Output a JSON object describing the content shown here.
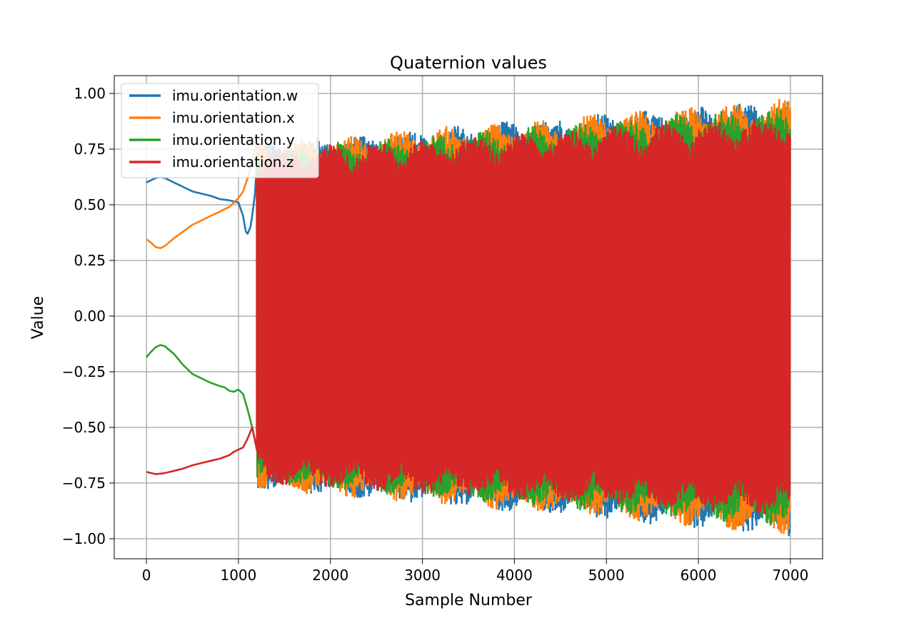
{
  "chart_data": {
    "type": "line",
    "title": "Quaternion values",
    "xlabel": "Sample Number",
    "ylabel": "Value",
    "xlim": [
      -350,
      7350
    ],
    "ylim": [
      -1.09,
      1.08
    ],
    "grid": true,
    "legend_position": "top-left",
    "xticks": [
      0,
      1000,
      2000,
      3000,
      4000,
      5000,
      6000,
      7000
    ],
    "xtick_labels": [
      "0",
      "1000",
      "2000",
      "3000",
      "4000",
      "5000",
      "6000",
      "7000"
    ],
    "yticks": [
      1.0,
      0.75,
      0.5,
      0.25,
      0.0,
      -0.25,
      -0.5,
      -0.75,
      -1.0
    ],
    "ytick_labels": [
      "1.00",
      "0.75",
      "0.50",
      "0.25",
      "0.00",
      "−0.25",
      "−0.50",
      "−0.75",
      "−1.00"
    ],
    "series": [
      {
        "name": "imu.orientation.w",
        "color": "#1f77b4",
        "smooth_x": [
          0,
          50,
          100,
          150,
          200,
          250,
          300,
          400,
          500,
          600,
          700,
          800,
          900,
          950,
          1000,
          1050,
          1080,
          1100,
          1130,
          1150,
          1180,
          1200
        ],
        "smooth_y": [
          0.6,
          0.61,
          0.62,
          0.625,
          0.62,
          0.61,
          0.6,
          0.58,
          0.56,
          0.55,
          0.54,
          0.525,
          0.52,
          0.515,
          0.51,
          0.45,
          0.38,
          0.37,
          0.4,
          0.45,
          0.55,
          0.7
        ],
        "osc_x": [
          1200,
          7000
        ],
        "osc_envelope_upper": [
          0.78,
          0.98
        ],
        "osc_envelope_lower": [
          -0.78,
          -0.99
        ]
      },
      {
        "name": "imu.orientation.x",
        "color": "#ff7f0e",
        "smooth_x": [
          0,
          50,
          100,
          150,
          200,
          300,
          400,
          500,
          600,
          700,
          800,
          900,
          950,
          1000,
          1050,
          1100,
          1150,
          1200
        ],
        "smooth_y": [
          0.345,
          0.33,
          0.31,
          0.305,
          0.315,
          0.35,
          0.38,
          0.41,
          0.43,
          0.45,
          0.47,
          0.49,
          0.51,
          0.53,
          0.56,
          0.62,
          0.7,
          0.78
        ],
        "osc_x": [
          1200,
          7000
        ],
        "osc_envelope_upper": [
          0.78,
          0.98
        ],
        "osc_envelope_lower": [
          -0.78,
          -0.98
        ]
      },
      {
        "name": "imu.orientation.y",
        "color": "#2ca02c",
        "smooth_x": [
          0,
          50,
          100,
          150,
          200,
          300,
          400,
          500,
          600,
          700,
          800,
          850,
          900,
          950,
          1000,
          1050,
          1100,
          1150,
          1200
        ],
        "smooth_y": [
          -0.185,
          -0.16,
          -0.14,
          -0.13,
          -0.135,
          -0.17,
          -0.22,
          -0.26,
          -0.28,
          -0.3,
          -0.315,
          -0.32,
          -0.335,
          -0.34,
          -0.33,
          -0.35,
          -0.42,
          -0.5,
          -0.6
        ],
        "osc_x": [
          1200,
          7000
        ],
        "osc_envelope_upper": [
          0.75,
          0.95
        ],
        "osc_envelope_lower": [
          -0.75,
          -0.95
        ]
      },
      {
        "name": "imu.orientation.z",
        "color": "#d62728",
        "smooth_x": [
          0,
          50,
          100,
          200,
          300,
          400,
          500,
          600,
          700,
          800,
          900,
          950,
          1000,
          1050,
          1100,
          1150,
          1200
        ],
        "smooth_y": [
          -0.7,
          -0.705,
          -0.71,
          -0.705,
          -0.695,
          -0.685,
          -0.67,
          -0.66,
          -0.65,
          -0.64,
          -0.625,
          -0.61,
          -0.6,
          -0.59,
          -0.55,
          -0.5,
          -0.6
        ],
        "osc_x": [
          1200,
          7000
        ],
        "osc_envelope_upper": [
          0.75,
          0.9
        ],
        "osc_envelope_lower": [
          -0.75,
          -0.9
        ]
      }
    ]
  }
}
